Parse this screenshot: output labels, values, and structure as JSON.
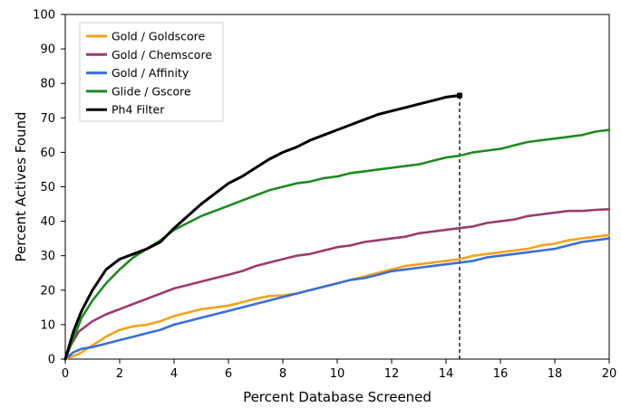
{
  "chart_data": {
    "type": "line",
    "title": "",
    "xlabel": "Percent Database Screened",
    "ylabel": "Percent Actives Found",
    "xlim": [
      0,
      20
    ],
    "ylim": [
      0,
      100
    ],
    "xticks": [
      0,
      2,
      4,
      6,
      8,
      10,
      12,
      14,
      16,
      18,
      20
    ],
    "yticks": [
      0,
      10,
      20,
      30,
      40,
      50,
      60,
      70,
      80,
      90,
      100
    ],
    "grid": false,
    "legend_position": "top-left",
    "series": [
      {
        "name": "Gold / Goldscore",
        "color": "#f5a21b",
        "points": [
          [
            0,
            0
          ],
          [
            0.5,
            1.5
          ],
          [
            1,
            4
          ],
          [
            1.5,
            6.5
          ],
          [
            2,
            8.5
          ],
          [
            2.5,
            9.5
          ],
          [
            3,
            10
          ],
          [
            3.5,
            11
          ],
          [
            4,
            12.5
          ],
          [
            4.5,
            13.5
          ],
          [
            5,
            14.5
          ],
          [
            5.5,
            15
          ],
          [
            6,
            15.5
          ],
          [
            6.5,
            16.5
          ],
          [
            7,
            17.5
          ],
          [
            7.5,
            18.3
          ],
          [
            8,
            18.5
          ],
          [
            8.5,
            19
          ],
          [
            9,
            20
          ],
          [
            9.5,
            21
          ],
          [
            10,
            22
          ],
          [
            10.5,
            23
          ],
          [
            11,
            24
          ],
          [
            11.5,
            25
          ],
          [
            12,
            26
          ],
          [
            12.5,
            27
          ],
          [
            13,
            27.5
          ],
          [
            13.5,
            28
          ],
          [
            14,
            28.5
          ],
          [
            14.5,
            29
          ],
          [
            15,
            30
          ],
          [
            15.5,
            30.5
          ],
          [
            16,
            31
          ],
          [
            16.5,
            31.5
          ],
          [
            17,
            32
          ],
          [
            17.5,
            33
          ],
          [
            18,
            33.5
          ],
          [
            18.5,
            34.5
          ],
          [
            19,
            35
          ],
          [
            19.5,
            35.5
          ],
          [
            20,
            36
          ]
        ]
      },
      {
        "name": "Gold / Chemscore",
        "color": "#9b3a6e",
        "points": [
          [
            0,
            0
          ],
          [
            0.2,
            4
          ],
          [
            0.5,
            8
          ],
          [
            1,
            11
          ],
          [
            1.5,
            13
          ],
          [
            2,
            14.5
          ],
          [
            2.5,
            16
          ],
          [
            3,
            17.5
          ],
          [
            3.5,
            19
          ],
          [
            4,
            20.5
          ],
          [
            4.5,
            21.5
          ],
          [
            5,
            22.5
          ],
          [
            5.5,
            23.5
          ],
          [
            6,
            24.5
          ],
          [
            6.5,
            25.5
          ],
          [
            7,
            27
          ],
          [
            7.5,
            28
          ],
          [
            8,
            29
          ],
          [
            8.5,
            30
          ],
          [
            9,
            30.5
          ],
          [
            9.5,
            31.5
          ],
          [
            10,
            32.5
          ],
          [
            10.5,
            33
          ],
          [
            11,
            34
          ],
          [
            11.5,
            34.5
          ],
          [
            12,
            35
          ],
          [
            12.5,
            35.5
          ],
          [
            13,
            36.5
          ],
          [
            13.5,
            37
          ],
          [
            14,
            37.5
          ],
          [
            14.5,
            38
          ],
          [
            15,
            38.5
          ],
          [
            15.5,
            39.5
          ],
          [
            16,
            40
          ],
          [
            16.5,
            40.5
          ],
          [
            17,
            41.5
          ],
          [
            17.5,
            42
          ],
          [
            18,
            42.5
          ],
          [
            18.5,
            43
          ],
          [
            19,
            43
          ],
          [
            19.5,
            43.3
          ],
          [
            20,
            43.5
          ]
        ]
      },
      {
        "name": "Gold / Affinity",
        "color": "#3a6fd8",
        "points": [
          [
            0,
            0
          ],
          [
            0.3,
            2
          ],
          [
            0.6,
            3
          ],
          [
            1,
            3.5
          ],
          [
            1.5,
            4.5
          ],
          [
            2,
            5.5
          ],
          [
            2.5,
            6.5
          ],
          [
            3,
            7.5
          ],
          [
            3.5,
            8.5
          ],
          [
            4,
            10
          ],
          [
            4.5,
            11
          ],
          [
            5,
            12
          ],
          [
            5.5,
            13
          ],
          [
            6,
            14
          ],
          [
            6.5,
            15
          ],
          [
            7,
            16
          ],
          [
            7.5,
            17
          ],
          [
            8,
            18
          ],
          [
            8.5,
            19
          ],
          [
            9,
            20
          ],
          [
            9.5,
            21
          ],
          [
            10,
            22
          ],
          [
            10.5,
            23
          ],
          [
            11,
            23.5
          ],
          [
            11.5,
            24.5
          ],
          [
            12,
            25.5
          ],
          [
            12.5,
            26
          ],
          [
            13,
            26.5
          ],
          [
            13.5,
            27
          ],
          [
            14,
            27.5
          ],
          [
            14.5,
            28
          ],
          [
            15,
            28.5
          ],
          [
            15.5,
            29.5
          ],
          [
            16,
            30
          ],
          [
            16.5,
            30.5
          ],
          [
            17,
            31
          ],
          [
            17.5,
            31.5
          ],
          [
            18,
            32
          ],
          [
            18.5,
            33
          ],
          [
            19,
            34
          ],
          [
            19.5,
            34.5
          ],
          [
            20,
            35
          ]
        ]
      },
      {
        "name": "Glide / Gscore",
        "color": "#1f8a22",
        "points": [
          [
            0,
            0
          ],
          [
            0.3,
            6
          ],
          [
            0.6,
            12
          ],
          [
            1,
            17
          ],
          [
            1.5,
            22
          ],
          [
            2,
            26
          ],
          [
            2.5,
            29.5
          ],
          [
            3,
            32
          ],
          [
            3.5,
            34.5
          ],
          [
            4,
            37.5
          ],
          [
            4.5,
            39.5
          ],
          [
            5,
            41.5
          ],
          [
            5.5,
            43
          ],
          [
            6,
            44.5
          ],
          [
            6.5,
            46
          ],
          [
            7,
            47.5
          ],
          [
            7.5,
            49
          ],
          [
            8,
            50
          ],
          [
            8.5,
            51
          ],
          [
            9,
            51.5
          ],
          [
            9.5,
            52.5
          ],
          [
            10,
            53
          ],
          [
            10.5,
            54
          ],
          [
            11,
            54.5
          ],
          [
            11.5,
            55
          ],
          [
            12,
            55.5
          ],
          [
            12.5,
            56
          ],
          [
            13,
            56.5
          ],
          [
            13.5,
            57.5
          ],
          [
            14,
            58.5
          ],
          [
            14.5,
            59
          ],
          [
            15,
            60
          ],
          [
            15.5,
            60.5
          ],
          [
            16,
            61
          ],
          [
            16.5,
            62
          ],
          [
            17,
            63
          ],
          [
            17.5,
            63.5
          ],
          [
            18,
            64
          ],
          [
            18.5,
            64.5
          ],
          [
            19,
            65
          ],
          [
            19.5,
            66
          ],
          [
            20,
            66.5
          ]
        ]
      },
      {
        "name": "Ph4 Filter",
        "color": "#000000",
        "points": [
          [
            0,
            0
          ],
          [
            0.3,
            8
          ],
          [
            0.6,
            14
          ],
          [
            1,
            20
          ],
          [
            1.5,
            26
          ],
          [
            2,
            29
          ],
          [
            2.5,
            30.5
          ],
          [
            3,
            32
          ],
          [
            3.5,
            34
          ],
          [
            4,
            38
          ],
          [
            4.5,
            41.5
          ],
          [
            5,
            45
          ],
          [
            5.5,
            48
          ],
          [
            6,
            51
          ],
          [
            6.5,
            53
          ],
          [
            7,
            55.5
          ],
          [
            7.5,
            58
          ],
          [
            8,
            60
          ],
          [
            8.5,
            61.5
          ],
          [
            9,
            63.5
          ],
          [
            9.5,
            65
          ],
          [
            10,
            66.5
          ],
          [
            10.5,
            68
          ],
          [
            11,
            69.5
          ],
          [
            11.5,
            71
          ],
          [
            12,
            72
          ],
          [
            12.5,
            73
          ],
          [
            13,
            74
          ],
          [
            13.5,
            75
          ],
          [
            14,
            76
          ],
          [
            14.5,
            76.5
          ]
        ]
      }
    ],
    "annotations": [
      {
        "type": "vertical-dashed-line",
        "x": 14.5,
        "from_y": 0,
        "to_y": 76.5,
        "color": "#000000"
      }
    ]
  }
}
